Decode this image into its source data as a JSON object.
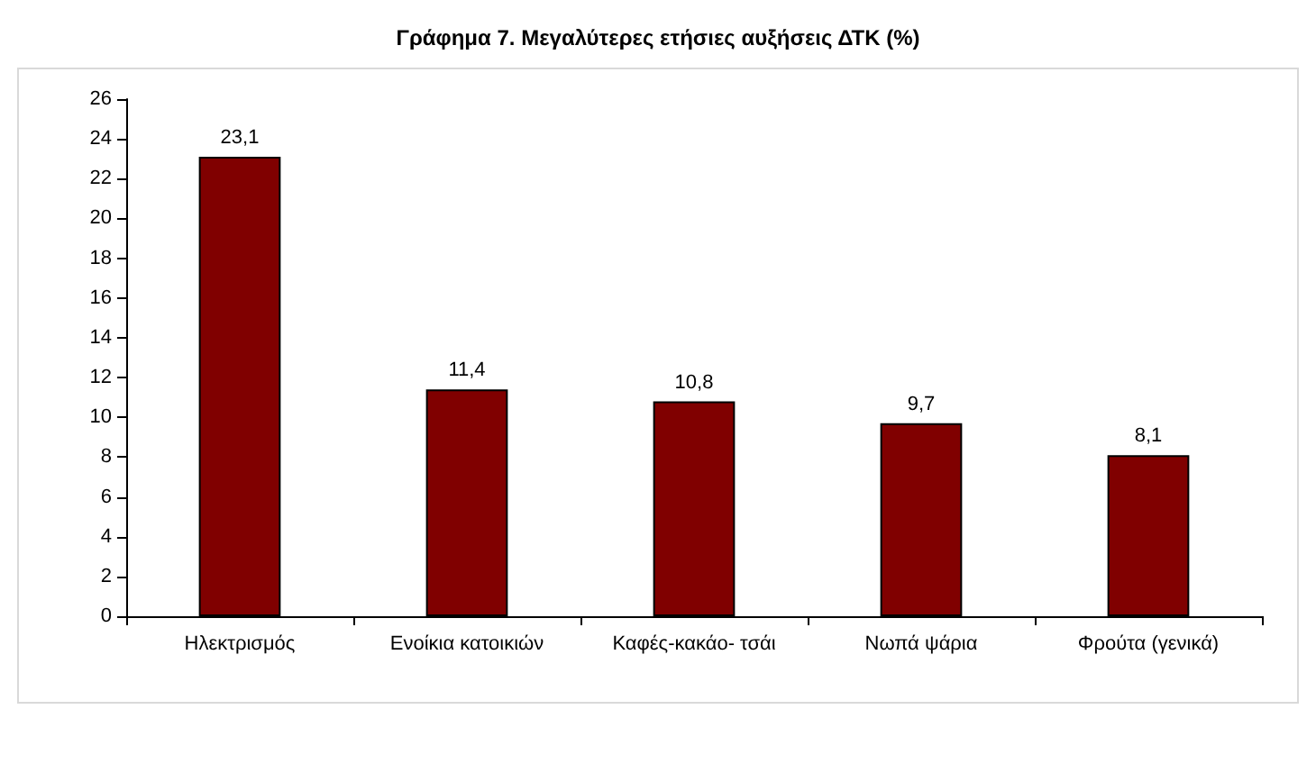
{
  "chart_data": {
    "type": "bar",
    "title": "Γράφημα 7. Μεγαλύτερες ετήσιες αυξήσεις ΔΤΚ (%)",
    "categories": [
      "Ηλεκτρισμός",
      "Ενοίκια κατοικιών",
      "Καφές-κακάο- τσάι",
      "Νωπά ψάρια",
      "Φρούτα (γενικά)"
    ],
    "values": [
      23.1,
      11.4,
      10.8,
      9.7,
      8.1
    ],
    "value_labels": [
      "23,1",
      "11,4",
      "10,8",
      "9,7",
      "8,1"
    ],
    "color": "#800000",
    "ylim": [
      0,
      26
    ],
    "yticks": [
      0,
      2,
      4,
      6,
      8,
      10,
      12,
      14,
      16,
      18,
      20,
      22,
      24,
      26
    ],
    "grid": false
  }
}
